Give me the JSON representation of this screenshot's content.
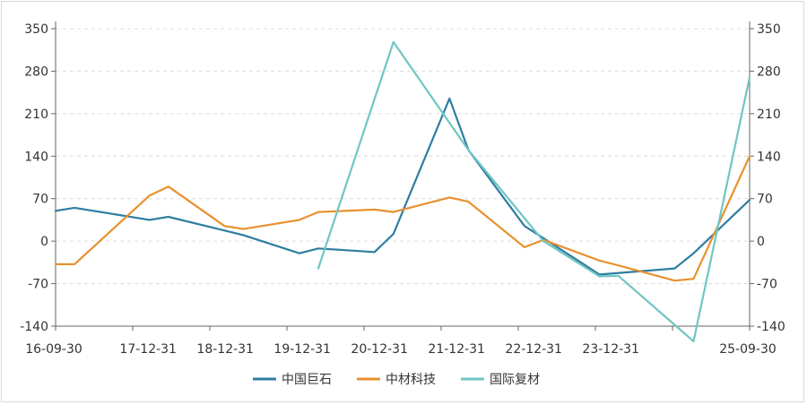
{
  "chart_data": {
    "type": "line",
    "title": "",
    "xlabel": "",
    "ylabel": "",
    "ylim": [
      -140,
      350
    ],
    "y_ticks": [
      -140,
      -70,
      0,
      70,
      140,
      210,
      280,
      350
    ],
    "y_tick_labels": [
      "-140",
      "-70",
      "0",
      "70",
      "140",
      "210",
      "280",
      "350"
    ],
    "x_tick_labels": [
      "16-09-30",
      "17-12-31",
      "18-12-31",
      "19-12-31",
      "20-12-31",
      "21-12-31",
      "22-12-31",
      "23-12-31",
      "25-09-30"
    ],
    "grid": true,
    "dual_y_axis": true,
    "legend": "bottom",
    "series": [
      {
        "name": "中国巨石",
        "color": "#2e7ea0",
        "points": [
          [
            "2016-06-30",
            50
          ],
          [
            "2016-09-30",
            55
          ],
          [
            "2017-09-30",
            35
          ],
          [
            "2017-12-31",
            40
          ],
          [
            "2018-12-31",
            10
          ],
          [
            "2019-09-30",
            -20
          ],
          [
            "2019-12-31",
            -12
          ],
          [
            "2020-09-30",
            -18
          ],
          [
            "2020-12-31",
            12
          ],
          [
            "2021-09-30",
            235
          ],
          [
            "2021-12-31",
            150
          ],
          [
            "2022-09-30",
            25
          ],
          [
            "2022-12-31",
            5
          ],
          [
            "2023-09-30",
            -55
          ],
          [
            "2024-09-30",
            -45
          ],
          [
            "2024-12-31",
            -20
          ],
          [
            "2025-09-30",
            68
          ]
        ]
      },
      {
        "name": "中材科技",
        "color": "#e8912f",
        "points": [
          [
            "2016-06-30",
            -38
          ],
          [
            "2016-09-30",
            -38
          ],
          [
            "2017-09-30",
            75
          ],
          [
            "2017-12-31",
            90
          ],
          [
            "2018-09-30",
            25
          ],
          [
            "2018-12-31",
            20
          ],
          [
            "2019-09-30",
            35
          ],
          [
            "2019-12-31",
            48
          ],
          [
            "2020-09-30",
            52
          ],
          [
            "2020-12-31",
            48
          ],
          [
            "2021-09-30",
            72
          ],
          [
            "2021-12-31",
            65
          ],
          [
            "2022-09-30",
            -10
          ],
          [
            "2022-12-31",
            2
          ],
          [
            "2023-09-30",
            -32
          ],
          [
            "2023-12-31",
            -40
          ],
          [
            "2024-09-30",
            -65
          ],
          [
            "2024-12-31",
            -62
          ],
          [
            "2025-09-30",
            140
          ]
        ]
      },
      {
        "name": "国际复材",
        "color": "#6fc6c4",
        "points": [
          [
            "2019-12-31",
            -45
          ],
          [
            "2020-12-31",
            328
          ],
          [
            "2021-12-31",
            150
          ],
          [
            "2022-12-31",
            0
          ],
          [
            "2023-09-30",
            -58
          ],
          [
            "2023-12-31",
            -57
          ],
          [
            "2024-12-31",
            -165
          ],
          [
            "2025-09-30",
            270
          ]
        ]
      }
    ]
  }
}
